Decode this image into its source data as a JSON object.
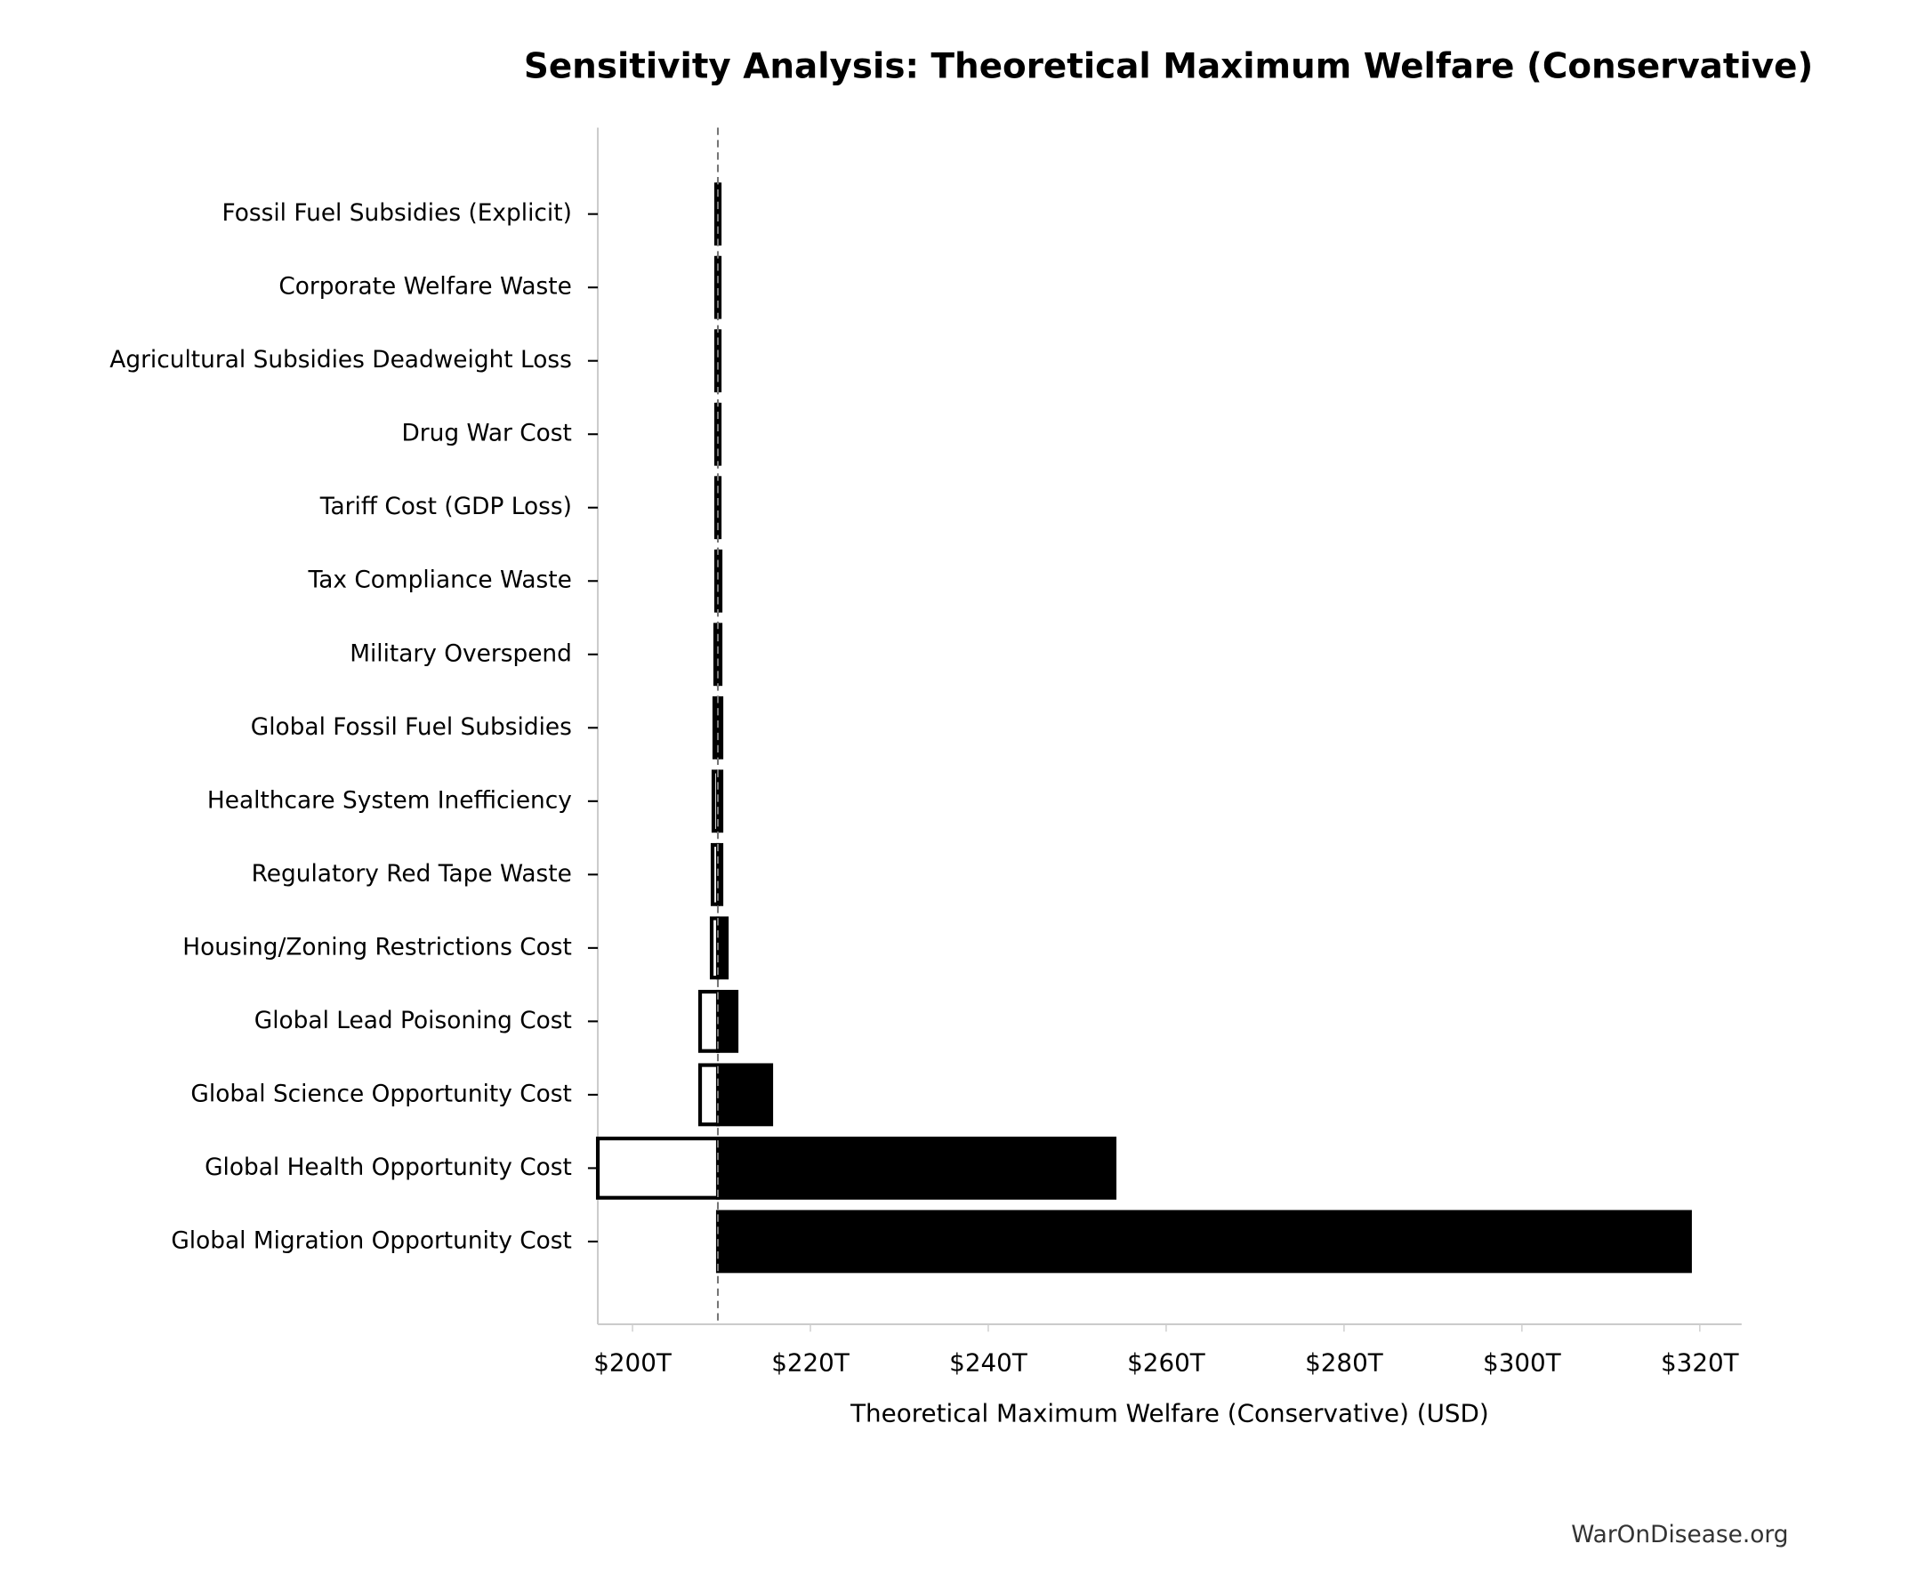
{
  "chart_data": {
    "type": "tornado",
    "title": "Sensitivity Analysis: Theoretical Maximum Welfare (Conservative)",
    "x_label": "Theoretical Maximum Welfare (Conservative) (USD)",
    "watermark": "WarOnDisease.org",
    "categories": [
      "Fossil Fuel Subsidies (Explicit)",
      "Corporate Welfare Waste",
      "Agricultural Subsidies Deadweight Loss",
      "Drug War Cost",
      "Tariff Cost (GDP Loss)",
      "Tax Compliance Waste",
      "Military Overspend",
      "Global Fossil Fuel Subsidies",
      "Healthcare System Inefficiency",
      "Regulatory Red Tape Waste",
      "Housing/Zoning Restrictions Cost",
      "Global Lead Poisoning Cost",
      "Global Science Opportunity Cost",
      "Global Health Opportunity Cost",
      "Global Migration Opportunity Cost"
    ],
    "low": [
      209.4,
      209.4,
      209.4,
      209.4,
      209.4,
      209.4,
      209.3,
      209.2,
      209.1,
      209.0,
      208.9,
      207.6,
      207.6,
      196.1,
      209.6
    ],
    "high": [
      209.8,
      209.8,
      209.8,
      209.8,
      209.8,
      209.9,
      209.9,
      210.0,
      210.0,
      210.0,
      210.6,
      211.7,
      215.6,
      254.2,
      318.9
    ],
    "baseline": 209.6,
    "low_color": "#ffffff",
    "high_color": "#000000",
    "xlim": [
      196.1,
      324.7
    ],
    "xticks": [
      {
        "value": 200,
        "label": "$200T"
      },
      {
        "value": 220,
        "label": "$220T"
      },
      {
        "value": 240,
        "label": "$240T"
      },
      {
        "value": 260,
        "label": "$260T"
      },
      {
        "value": 280,
        "label": "$280T"
      },
      {
        "value": 300,
        "label": "$300T"
      },
      {
        "value": 320,
        "label": "$320T"
      }
    ]
  }
}
